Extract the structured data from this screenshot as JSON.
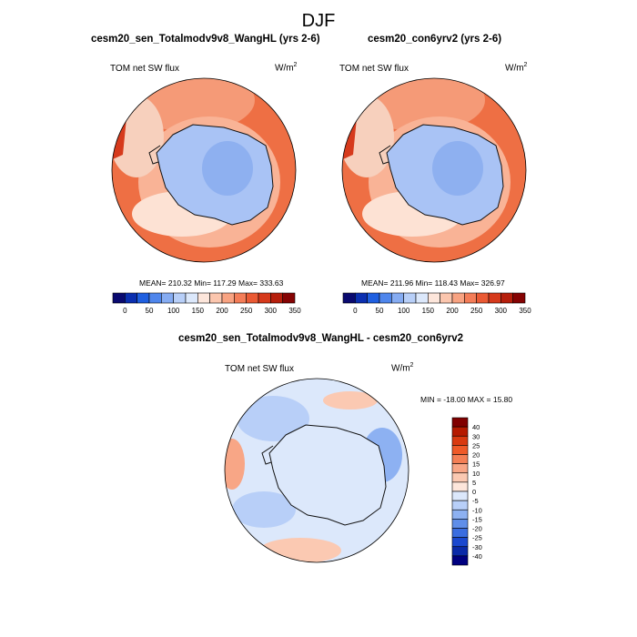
{
  "figure": {
    "title": "DJF"
  },
  "panels": [
    {
      "title": "cesm20_sen_Totalmodv9v8_WangHL (yrs 2-6)",
      "variable": "TOM net SW flux",
      "units_base": "W/m",
      "units_exp": "2",
      "stats": "MEAN= 210.32  Min= 117.29  Max= 333.63"
    },
    {
      "title": "cesm20_con6yrv2 (yrs 2-6)",
      "variable": "TOM net SW flux",
      "units_base": "W/m",
      "units_exp": "2",
      "stats": "MEAN= 211.96  Min= 118.43  Max= 326.97"
    },
    {
      "title": "cesm20_sen_Totalmodv9v8_WangHL - cesm20_con6yrv2",
      "variable": "TOM net SW flux",
      "units_base": "W/m",
      "units_exp": "2",
      "stats": "MIN = -18.00 MAX =  15.80"
    }
  ],
  "colorbar_abs": {
    "labels": [
      "0",
      "50",
      "100",
      "150",
      "200",
      "250",
      "300",
      "350"
    ],
    "colors": [
      "#0a0a70",
      "#0b2fb0",
      "#1f5fe0",
      "#4f86ec",
      "#86acf2",
      "#b8cff8",
      "#dce8fb",
      "#fde6db",
      "#fbc6ae",
      "#f8a382",
      "#f47d58",
      "#ea5a34",
      "#d63a1c",
      "#b61f0c",
      "#850303"
    ]
  },
  "colorbar_diff": {
    "labels": [
      "40",
      "30",
      "25",
      "20",
      "15",
      "10",
      "5",
      "0",
      "-5",
      "-10",
      "-15",
      "-20",
      "-25",
      "-30",
      "-40"
    ],
    "colors": [
      "#800000",
      "#b51a00",
      "#d93a10",
      "#ef5a28",
      "#f47f55",
      "#f8a686",
      "#fbc9b2",
      "#fde6db",
      "#dce8fb",
      "#b8cff8",
      "#8db1f2",
      "#5f8ee9",
      "#3a6de0",
      "#1a48cf",
      "#0a2aa8",
      "#000080"
    ]
  }
}
